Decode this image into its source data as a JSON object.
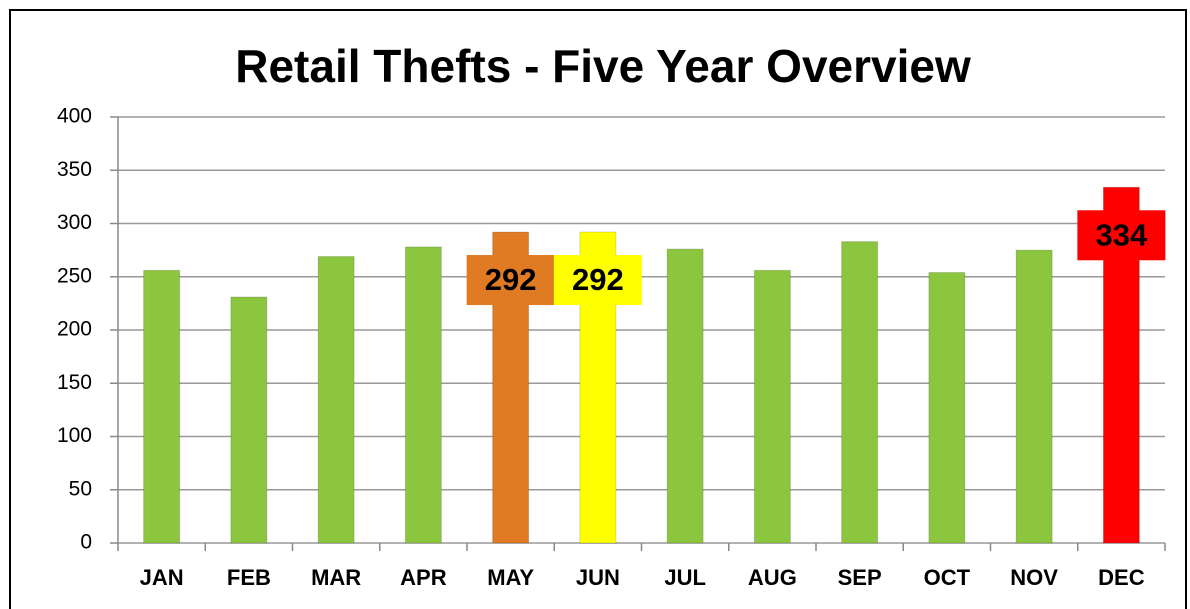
{
  "chart_data": {
    "type": "bar",
    "title": "Retail Thefts - Five Year Overview",
    "categories": [
      "JAN",
      "FEB",
      "MAR",
      "APR",
      "MAY",
      "JUN",
      "JUL",
      "AUG",
      "SEP",
      "OCT",
      "NOV",
      "DEC"
    ],
    "values": [
      256,
      231,
      269,
      278,
      292,
      292,
      276,
      256,
      283,
      254,
      275,
      334
    ],
    "colors": [
      "#8cc63f",
      "#8cc63f",
      "#8cc63f",
      "#8cc63f",
      "#e07b24",
      "#ffff00",
      "#8cc63f",
      "#8cc63f",
      "#8cc63f",
      "#8cc63f",
      "#8cc63f",
      "#ff0000"
    ],
    "show_value_label": [
      false,
      false,
      false,
      false,
      true,
      true,
      false,
      false,
      false,
      false,
      false,
      true
    ],
    "ylim": [
      0,
      400
    ],
    "yticks": [
      0,
      50,
      100,
      150,
      200,
      250,
      300,
      350,
      400
    ],
    "grid": true
  }
}
